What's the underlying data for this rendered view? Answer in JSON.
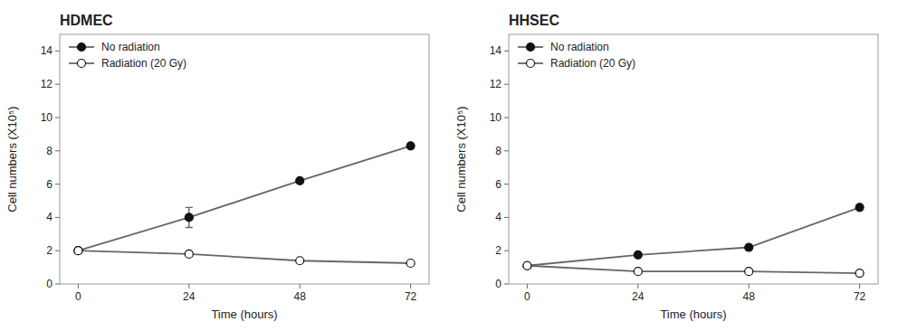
{
  "chart_data": [
    {
      "type": "line",
      "title": "HDMEC",
      "xlabel": "Time (hours)",
      "ylabel": "Cell numbers (X10⁵)",
      "x": [
        0,
        24,
        48,
        72
      ],
      "series": [
        {
          "name": "No radiation",
          "color": "#666666",
          "marker": "circle",
          "values": [
            2.0,
            4.0,
            6.2,
            8.3
          ],
          "yerr": [
            0,
            0.6,
            0,
            0
          ]
        },
        {
          "name": "Radiation (20 Gy)",
          "color": "#666666",
          "marker": "circle-open",
          "values": [
            2.0,
            1.8,
            1.4,
            1.25
          ]
        }
      ],
      "xlim": [
        -4,
        76
      ],
      "xticks": [
        0,
        24,
        48,
        72
      ],
      "ylim": [
        0,
        15
      ],
      "yticks": [
        0,
        2,
        4,
        6,
        8,
        10,
        12,
        14
      ],
      "grid": false,
      "legend": "upper-left"
    },
    {
      "type": "line",
      "title": "HHSEC",
      "xlabel": "Time (hours)",
      "ylabel": "Cell numbers (X10⁵)",
      "x": [
        0,
        24,
        48,
        72
      ],
      "series": [
        {
          "name": "No radiation",
          "color": "#666666",
          "marker": "circle",
          "values": [
            1.1,
            1.75,
            2.2,
            4.6
          ],
          "yerr": [
            0,
            0,
            0,
            0
          ]
        },
        {
          "name": "Radiation (20 Gy)",
          "color": "#666666",
          "marker": "circle-open",
          "values": [
            1.1,
            0.75,
            0.75,
            0.65
          ]
        }
      ],
      "xlim": [
        -4,
        76
      ],
      "xticks": [
        0,
        24,
        48,
        72
      ],
      "ylim": [
        0,
        15
      ],
      "yticks": [
        0,
        2,
        4,
        6,
        8,
        10,
        12,
        14
      ],
      "grid": false,
      "legend": "upper-left"
    }
  ]
}
